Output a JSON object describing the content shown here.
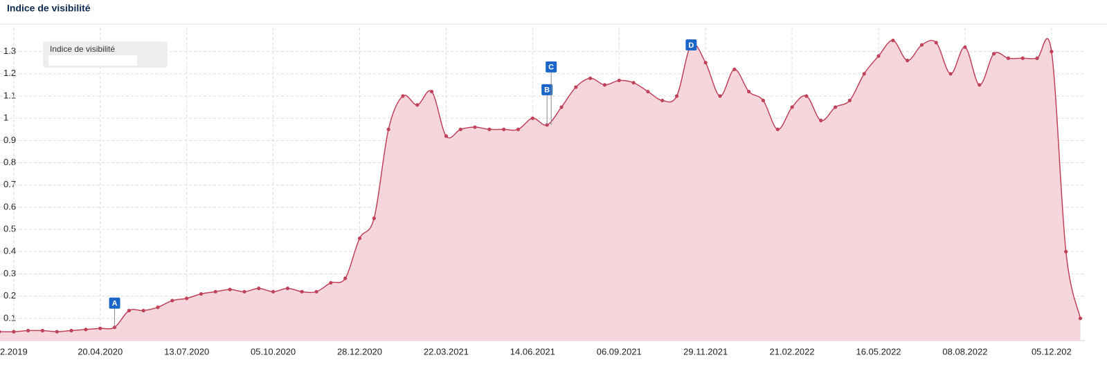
{
  "chart_data": {
    "type": "area",
    "title": "Indice de visibilité",
    "categories": [
      null,
      "2.2019",
      null,
      null,
      null,
      null,
      null,
      "20.04.2020",
      null,
      null,
      null,
      null,
      null,
      "13.07.2020",
      null,
      null,
      null,
      null,
      null,
      "05.10.2020",
      null,
      null,
      null,
      null,
      null,
      "28.12.2020",
      null,
      null,
      null,
      null,
      null,
      "22.03.2021",
      null,
      null,
      null,
      null,
      null,
      "14.06.2021",
      null,
      null,
      null,
      null,
      null,
      "06.09.2021",
      null,
      null,
      null,
      null,
      null,
      "29.11.2021",
      null,
      null,
      null,
      null,
      null,
      "21.02.2022",
      null,
      null,
      null,
      null,
      null,
      "16.05.2022",
      null,
      null,
      null,
      null,
      null,
      "08.08.2022",
      null,
      null,
      null,
      null,
      null,
      "05.12.202",
      null,
      null
    ],
    "series": [
      {
        "name": "Indice de visibilité",
        "color": "#c0415a",
        "values": [
          0.04,
          0.04,
          0.045,
          0.045,
          0.04,
          0.045,
          0.05,
          0.055,
          0.06,
          0.135,
          0.135,
          0.15,
          0.18,
          0.19,
          0.21,
          0.22,
          0.23,
          0.22,
          0.235,
          0.22,
          0.235,
          0.22,
          0.22,
          0.26,
          0.28,
          0.46,
          0.55,
          0.95,
          1.1,
          1.06,
          1.12,
          0.92,
          0.95,
          0.96,
          0.95,
          0.95,
          0.95,
          1.0,
          0.97,
          1.05,
          1.14,
          1.18,
          1.15,
          1.17,
          1.16,
          1.12,
          1.08,
          1.1,
          1.33,
          1.25,
          1.1,
          1.22,
          1.12,
          1.08,
          0.95,
          1.05,
          1.1,
          0.99,
          1.05,
          1.08,
          1.2,
          1.28,
          1.35,
          1.26,
          1.33,
          1.34,
          1.2,
          1.32,
          1.15,
          1.29,
          1.27,
          1.27,
          1.27,
          1.3,
          0.4,
          0.1
        ]
      }
    ],
    "ylim": [
      0,
      1.42
    ],
    "yticks": [
      0.1,
      0.2,
      0.3,
      0.4,
      0.5,
      0.6,
      0.7,
      0.8,
      0.9,
      1,
      1.1,
      1.2,
      1.3
    ],
    "grid": true,
    "annotations": [
      {
        "label": "A",
        "index": 8
      },
      {
        "label": "B",
        "index": 38
      },
      {
        "label": "C",
        "index": 38
      },
      {
        "label": "D",
        "index": 48
      }
    ]
  }
}
